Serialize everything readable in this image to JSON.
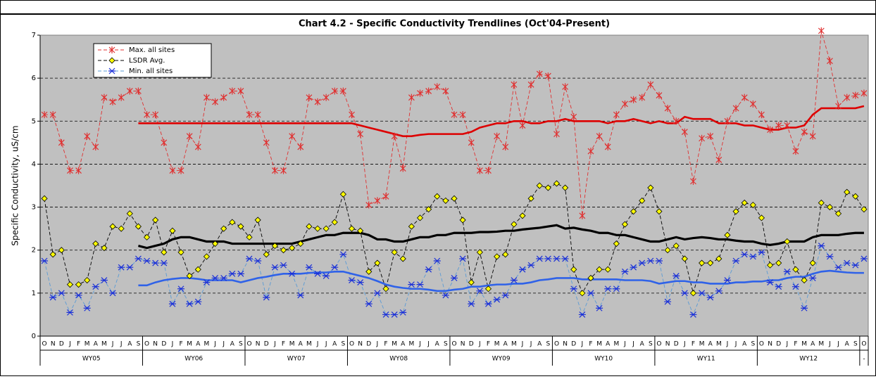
{
  "chart_data": {
    "type": "line",
    "title": "Chart 4.2 - Specific Conductivity Trendlines (Oct'04-Present)",
    "y_label": "Specific Conductivity, uS/cm",
    "categories": [
      "O",
      "N",
      "D",
      "J",
      "F",
      "M",
      "A",
      "M",
      "J",
      "J",
      "A",
      "S",
      "O",
      "N",
      "D",
      "J",
      "F",
      "M",
      "A",
      "M",
      "J",
      "J",
      "A",
      "S",
      "O",
      "N",
      "D",
      "J",
      "F",
      "M",
      "A",
      "M",
      "J",
      "J",
      "A",
      "S",
      "O",
      "N",
      "D",
      "J",
      "F",
      "M",
      "A",
      "M",
      "J",
      "J",
      "A",
      "S",
      "O",
      "N",
      "D",
      "J",
      "F",
      "M",
      "A",
      "M",
      "J",
      "J",
      "A",
      "S",
      "O",
      "N",
      "D",
      "J",
      "F",
      "M",
      "A",
      "M",
      "J",
      "J",
      "A",
      "S",
      "O",
      "N",
      "D",
      "J",
      "F",
      "M",
      "A",
      "M",
      "J",
      "J",
      "A",
      "S",
      "O",
      "N",
      "D",
      "J",
      "F",
      "M",
      "A",
      "M",
      "J",
      "J",
      "A",
      "S",
      "O"
    ],
    "groups": [
      "WY05",
      "WY06",
      "WY07",
      "WY08",
      "WY09",
      "WY10",
      "WY11",
      "WY12",
      "-"
    ],
    "ylim": [
      0,
      7
    ],
    "yticks": [
      0,
      1,
      2,
      3,
      4,
      5,
      6,
      7
    ],
    "grid": true,
    "legend": "top-left",
    "series": [
      {
        "name": "Max. all sites",
        "color": "#e03030",
        "marker": "star",
        "values": [
          5.15,
          5.15,
          4.5,
          3.85,
          3.85,
          4.65,
          4.4,
          5.55,
          5.45,
          5.55,
          5.7,
          5.7,
          5.15,
          5.15,
          4.5,
          3.85,
          3.85,
          4.65,
          4.4,
          5.55,
          5.45,
          5.55,
          5.7,
          5.7,
          5.15,
          5.15,
          4.5,
          3.85,
          3.85,
          4.65,
          4.4,
          5.55,
          5.45,
          5.55,
          5.7,
          5.7,
          5.15,
          4.7,
          3.05,
          3.15,
          3.25,
          4.65,
          3.9,
          5.55,
          5.65,
          5.7,
          5.8,
          5.7,
          5.15,
          5.15,
          4.5,
          3.85,
          3.85,
          4.65,
          4.4,
          5.85,
          4.9,
          5.85,
          6.1,
          6.05,
          4.7,
          5.8,
          5.1,
          2.8,
          4.3,
          4.65,
          4.4,
          5.15,
          5.4,
          5.5,
          5.55,
          5.85,
          5.6,
          5.3,
          5.0,
          4.75,
          3.6,
          4.6,
          4.65,
          4.1,
          5.0,
          5.3,
          5.55,
          5.4,
          5.15,
          4.8,
          4.9,
          4.9,
          4.3,
          4.75,
          4.65,
          7.1,
          6.4,
          5.35,
          5.55,
          5.6,
          5.65
        ]
      },
      {
        "name": "LSDR Avg.",
        "color": "#000000",
        "marker": "diamond",
        "values": [
          3.2,
          1.9,
          2.0,
          1.2,
          1.2,
          1.3,
          2.15,
          2.05,
          2.55,
          2.5,
          2.85,
          2.55,
          2.3,
          2.7,
          1.95,
          2.45,
          1.95,
          1.4,
          1.55,
          1.85,
          2.15,
          2.5,
          2.65,
          2.55,
          2.3,
          2.7,
          1.9,
          2.1,
          2.0,
          2.05,
          2.15,
          2.55,
          2.5,
          2.5,
          2.65,
          3.3,
          2.5,
          2.45,
          1.5,
          1.7,
          1.1,
          1.95,
          1.8,
          2.55,
          2.75,
          2.95,
          3.25,
          3.15,
          3.2,
          2.7,
          1.25,
          1.95,
          1.1,
          1.85,
          1.9,
          2.6,
          2.8,
          3.2,
          3.5,
          3.45,
          3.55,
          3.45,
          1.55,
          1.0,
          1.35,
          1.55,
          1.55,
          2.15,
          2.6,
          2.9,
          3.15,
          3.45,
          2.9,
          2.0,
          2.1,
          1.8,
          1.0,
          1.7,
          1.7,
          1.8,
          2.35,
          2.9,
          3.1,
          3.05,
          2.75,
          1.65,
          1.7,
          2.2,
          1.55,
          1.3,
          1.7,
          3.1,
          3.0,
          2.85,
          3.35,
          3.25,
          2.95
        ]
      },
      {
        "name": "Min. all sites",
        "color": "#5b9bd5",
        "marker": "xstar",
        "values": [
          1.75,
          0.9,
          1.0,
          0.55,
          0.95,
          0.65,
          1.15,
          1.3,
          1.0,
          1.6,
          1.6,
          1.8,
          1.75,
          1.7,
          1.7,
          0.75,
          1.1,
          0.75,
          0.8,
          1.25,
          1.35,
          1.35,
          1.45,
          1.45,
          1.8,
          1.75,
          0.9,
          1.6,
          1.65,
          1.45,
          0.95,
          1.6,
          1.45,
          1.4,
          1.6,
          1.9,
          1.3,
          1.25,
          0.75,
          1.0,
          0.5,
          0.5,
          0.55,
          1.2,
          1.2,
          1.55,
          1.75,
          0.95,
          1.35,
          1.8,
          0.75,
          1.05,
          0.75,
          0.85,
          0.95,
          1.3,
          1.55,
          1.65,
          1.8,
          1.8,
          1.8,
          1.8,
          1.1,
          0.5,
          1.0,
          0.65,
          1.1,
          1.1,
          1.5,
          1.6,
          1.7,
          1.75,
          1.75,
          0.8,
          1.4,
          1.0,
          0.5,
          1.0,
          0.9,
          1.05,
          1.3,
          1.75,
          1.9,
          1.85,
          1.95,
          1.25,
          1.15,
          1.5,
          1.15,
          0.65,
          1.35,
          2.1,
          1.85,
          1.6,
          1.7,
          1.65,
          1.8
        ]
      }
    ],
    "trendlines": [
      {
        "color": "#dd0000",
        "values": [
          null,
          null,
          null,
          null,
          null,
          null,
          null,
          null,
          null,
          null,
          null,
          4.95,
          4.95,
          4.95,
          4.95,
          4.95,
          4.95,
          4.95,
          4.95,
          4.95,
          4.95,
          4.95,
          4.95,
          4.95,
          4.95,
          4.95,
          4.95,
          4.95,
          4.95,
          4.95,
          4.95,
          4.95,
          4.95,
          4.95,
          4.95,
          4.95,
          4.95,
          4.9,
          4.85,
          4.8,
          4.75,
          4.7,
          4.65,
          4.65,
          4.68,
          4.7,
          4.7,
          4.7,
          4.7,
          4.7,
          4.75,
          4.85,
          4.9,
          4.95,
          4.95,
          5.0,
          5.0,
          4.95,
          4.95,
          5.0,
          5.0,
          5.05,
          5.0,
          5.0,
          5.0,
          5.0,
          4.95,
          5.0,
          5.0,
          5.05,
          5.0,
          4.95,
          5.0,
          4.95,
          4.95,
          5.1,
          5.05,
          5.05,
          5.05,
          4.95,
          4.95,
          4.95,
          4.9,
          4.9,
          4.85,
          4.8,
          4.8,
          4.85,
          4.85,
          4.9,
          5.15,
          5.3,
          5.3,
          5.3,
          5.3,
          5.3,
          5.35
        ]
      },
      {
        "color": "#000000",
        "values": [
          null,
          null,
          null,
          null,
          null,
          null,
          null,
          null,
          null,
          null,
          null,
          2.1,
          2.05,
          2.1,
          2.15,
          2.25,
          2.3,
          2.3,
          2.25,
          2.2,
          2.2,
          2.2,
          2.15,
          2.15,
          2.15,
          2.15,
          2.15,
          2.15,
          2.15,
          2.15,
          2.2,
          2.25,
          2.3,
          2.35,
          2.35,
          2.4,
          2.4,
          2.4,
          2.35,
          2.25,
          2.25,
          2.2,
          2.2,
          2.25,
          2.3,
          2.3,
          2.35,
          2.35,
          2.4,
          2.4,
          2.4,
          2.42,
          2.42,
          2.43,
          2.45,
          2.45,
          2.48,
          2.5,
          2.52,
          2.55,
          2.58,
          2.5,
          2.52,
          2.48,
          2.45,
          2.4,
          2.4,
          2.35,
          2.35,
          2.3,
          2.25,
          2.2,
          2.2,
          2.25,
          2.3,
          2.25,
          2.28,
          2.3,
          2.28,
          2.25,
          2.25,
          2.22,
          2.2,
          2.2,
          2.15,
          2.12,
          2.15,
          2.2,
          2.2,
          2.2,
          2.3,
          2.35,
          2.35,
          2.35,
          2.38,
          2.4,
          2.4
        ]
      },
      {
        "color": "#2f62e8",
        "values": [
          null,
          null,
          null,
          null,
          null,
          null,
          null,
          null,
          null,
          null,
          null,
          1.18,
          1.18,
          1.25,
          1.3,
          1.33,
          1.35,
          1.35,
          1.33,
          1.3,
          1.3,
          1.3,
          1.3,
          1.25,
          1.3,
          1.35,
          1.38,
          1.42,
          1.45,
          1.45,
          1.45,
          1.47,
          1.48,
          1.48,
          1.5,
          1.5,
          1.45,
          1.4,
          1.35,
          1.28,
          1.2,
          1.15,
          1.12,
          1.1,
          1.1,
          1.08,
          1.05,
          1.05,
          1.08,
          1.1,
          1.15,
          1.15,
          1.18,
          1.2,
          1.2,
          1.22,
          1.22,
          1.25,
          1.3,
          1.32,
          1.35,
          1.35,
          1.35,
          1.32,
          1.32,
          1.32,
          1.32,
          1.32,
          1.3,
          1.3,
          1.3,
          1.28,
          1.22,
          1.25,
          1.28,
          1.28,
          1.25,
          1.25,
          1.22,
          1.22,
          1.22,
          1.25,
          1.25,
          1.27,
          1.27,
          1.3,
          1.3,
          1.35,
          1.38,
          1.38,
          1.45,
          1.5,
          1.52,
          1.5,
          1.48,
          1.47,
          1.47
        ]
      }
    ]
  }
}
